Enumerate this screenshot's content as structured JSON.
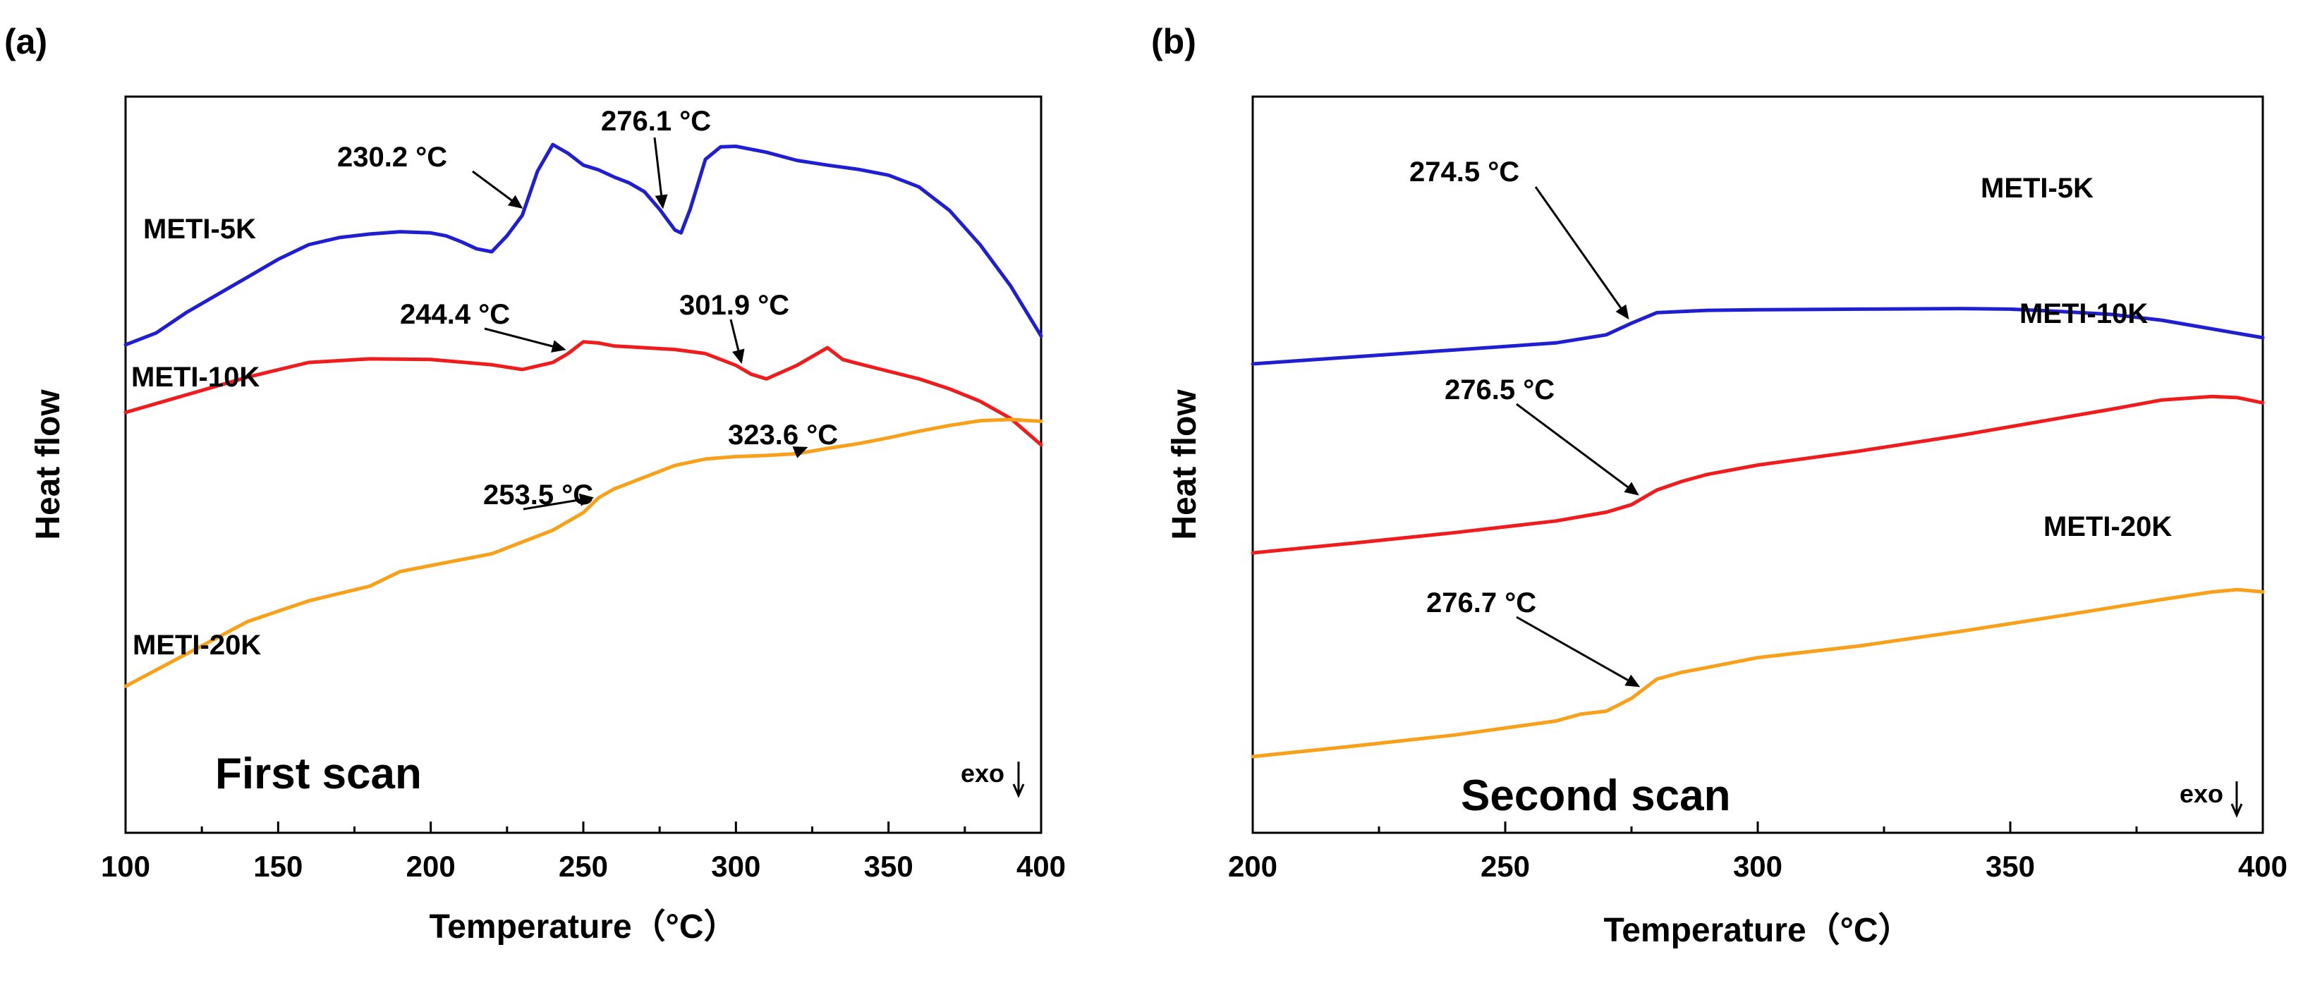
{
  "chart_data": [
    {
      "panel_label": "(a)",
      "type": "line",
      "scan_label": "First scan",
      "exo_label": "exo",
      "xlabel": "Temperature（°C）",
      "ylabel": "Heat flow",
      "xlim": [
        100,
        400
      ],
      "ylim": [
        0,
        100
      ],
      "xticks": [
        100,
        150,
        200,
        250,
        300,
        350,
        400
      ],
      "series": [
        {
          "name": "METI-5K",
          "color": "#1f1fd1",
          "x": [
            100,
            110,
            120,
            130,
            140,
            150,
            160,
            170,
            180,
            190,
            200,
            205,
            210,
            215,
            220,
            225,
            230,
            235,
            240,
            245,
            250,
            255,
            260,
            265,
            270,
            275,
            280,
            282,
            285,
            290,
            295,
            300,
            310,
            320,
            330,
            340,
            350,
            360,
            370,
            380,
            390,
            400
          ],
          "values": [
            66,
            68,
            71.5,
            74.5,
            77.5,
            80.5,
            83,
            84.2,
            84.8,
            85.2,
            85,
            84.5,
            83.5,
            82.3,
            81.8,
            84.5,
            88,
            95.5,
            100,
            98.5,
            96.5,
            95.7,
            94.5,
            93.5,
            92,
            89,
            85.5,
            85,
            89,
            97.5,
            99.6,
            99.7,
            98.7,
            97.3,
            96.5,
            95.8,
            94.8,
            92.8,
            88.8,
            83,
            76,
            67.5
          ]
        },
        {
          "name": "METI-10K",
          "color": "#ee1c1c",
          "x": [
            100,
            120,
            140,
            160,
            180,
            200,
            220,
            230,
            240,
            245,
            250,
            255,
            260,
            270,
            280,
            290,
            300,
            305,
            310,
            320,
            330,
            335,
            340,
            350,
            360,
            370,
            380,
            390,
            400
          ],
          "values": [
            54.5,
            57.5,
            60.5,
            63,
            63.6,
            63.5,
            62.6,
            61.8,
            63,
            64.5,
            66.5,
            66.3,
            65.8,
            65.5,
            65.2,
            64.5,
            62.5,
            61,
            60.2,
            62.5,
            65.5,
            63.5,
            62.8,
            61.5,
            60.2,
            58.5,
            56.4,
            53.5,
            49
          ]
        },
        {
          "name": "METI-20K",
          "color": "#f7a11a",
          "x": [
            100,
            120,
            140,
            160,
            180,
            190,
            200,
            220,
            240,
            250,
            255,
            260,
            270,
            280,
            290,
            300,
            310,
            320,
            330,
            340,
            350,
            360,
            370,
            380,
            390,
            400
          ],
          "values": [
            8,
            13.5,
            19,
            22.5,
            25,
            27.5,
            28.5,
            30.5,
            34.5,
            37.5,
            40,
            41.5,
            43.5,
            45.5,
            46.6,
            47,
            47.2,
            47.5,
            48.4,
            49.2,
            50.2,
            51.3,
            52.3,
            53.1,
            53.3,
            53
          ]
        }
      ],
      "annotations": [
        {
          "text": "230.2 °C",
          "x": 230.2,
          "target_series": 0
        },
        {
          "text": "276.1 °C",
          "x": 276.1,
          "target_series": 0
        },
        {
          "text": "244.4 °C",
          "x": 244.4,
          "target_series": 1
        },
        {
          "text": "301.9 °C",
          "x": 301.9,
          "target_series": 1
        },
        {
          "text": "253.5 °C",
          "x": 253.5,
          "target_series": 2
        },
        {
          "text": "323.6 °C",
          "x": 323.6,
          "target_series": 2
        }
      ]
    },
    {
      "panel_label": "(b)",
      "type": "line",
      "scan_label": "Second scan",
      "exo_label": "exo",
      "xlabel": "Temperature（°C）",
      "ylabel": "Heat flow",
      "xlim": [
        200,
        400
      ],
      "ylim": [
        0,
        100
      ],
      "xticks": [
        200,
        250,
        300,
        350,
        400
      ],
      "series": [
        {
          "name": "METI-5K",
          "color": "#1f1fd1",
          "x": [
            200,
            220,
            240,
            260,
            270,
            275,
            280,
            290,
            300,
            320,
            340,
            350,
            360,
            370,
            380,
            390,
            400
          ],
          "values": [
            72,
            73.2,
            74.4,
            75.6,
            77,
            79,
            80.8,
            81.2,
            81.3,
            81.4,
            81.5,
            81.4,
            81,
            80.5,
            79.5,
            78,
            76.5
          ]
        },
        {
          "name": "METI-10K",
          "color": "#ee1c1c",
          "x": [
            200,
            220,
            240,
            260,
            270,
            275,
            280,
            285,
            290,
            300,
            320,
            340,
            360,
            370,
            380,
            390,
            395,
            400
          ],
          "values": [
            39.5,
            41.2,
            43,
            45,
            46.5,
            47.8,
            50.3,
            51.8,
            53,
            54.6,
            57,
            59.7,
            62.7,
            64.2,
            65.8,
            66.4,
            66.2,
            65.3
          ]
        },
        {
          "name": "METI-20K",
          "color": "#f7a11a",
          "x": [
            200,
            220,
            240,
            260,
            265,
            270,
            275,
            280,
            285,
            290,
            300,
            320,
            340,
            360,
            380,
            390,
            395,
            400
          ],
          "values": [
            4.5,
            6.3,
            8.2,
            10.6,
            11.8,
            12.3,
            14.5,
            17.8,
            19,
            19.8,
            21.5,
            23.5,
            26,
            28.7,
            31.5,
            32.8,
            33.2,
            32.8
          ]
        }
      ],
      "annotations": [
        {
          "text": "274.5 °C",
          "x": 274.5,
          "target_series": 0
        },
        {
          "text": "276.5 °C",
          "x": 276.5,
          "target_series": 1
        },
        {
          "text": "276.7 °C",
          "x": 276.7,
          "target_series": 2
        }
      ]
    }
  ]
}
